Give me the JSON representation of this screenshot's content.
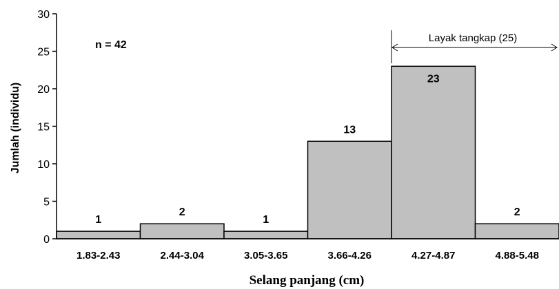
{
  "chart_data": {
    "type": "bar",
    "categories": [
      "1.83-2.43",
      "2.44-3.04",
      "3.05-3.65",
      "3.66-4.26",
      "4.27-4.87",
      "4.88-5.48"
    ],
    "values": [
      1,
      2,
      1,
      13,
      23,
      2
    ],
    "data_labels": [
      "1",
      "2",
      "1",
      "13",
      "23",
      "2"
    ],
    "title": "",
    "xlabel": "Selang panjang (cm)",
    "ylabel": "Jumlah  (individu)",
    "ylim": [
      0,
      30
    ],
    "yticks": [
      0,
      5,
      10,
      15,
      20,
      25,
      30
    ],
    "ytick_labels": [
      "0",
      "5",
      "10",
      "15",
      "20",
      "25",
      "30"
    ],
    "grid": false,
    "legend": "none",
    "bar_gap": 0,
    "colors": {
      "bar_fill": "#c0c0c0",
      "bar_stroke": "#000000",
      "axis": "#000000"
    },
    "annotations": {
      "sample_size": "n = 42",
      "bracket_label": "Layak tangkap (25)",
      "bracket_start_category": "4.27-4.87"
    }
  }
}
